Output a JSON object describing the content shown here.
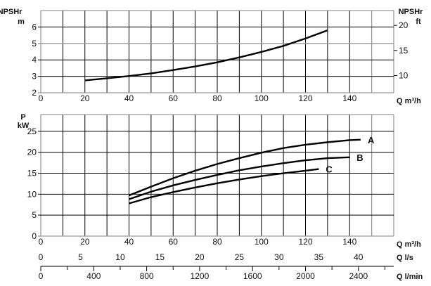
{
  "chart_data": [
    {
      "type": "line",
      "ylabel_left": [
        "NPSHr",
        "m"
      ],
      "ylabel_right": [
        "NPSHr",
        "ft"
      ],
      "xlabel": "Q m³/h",
      "xlim": [
        0,
        160
      ],
      "ylim": [
        2,
        7
      ],
      "xticks": [
        0,
        20,
        40,
        60,
        80,
        100,
        120,
        140
      ],
      "yticks": [
        2,
        3,
        4,
        5,
        6
      ],
      "yticks_right_ft": [
        10,
        15,
        20
      ],
      "grid": true,
      "series": [
        {
          "x": [
            20,
            30,
            40,
            50,
            60,
            70,
            80,
            90,
            100,
            110,
            120,
            130
          ],
          "y": [
            2.75,
            2.88,
            3.02,
            3.18,
            3.38,
            3.6,
            3.85,
            4.15,
            4.48,
            4.85,
            5.3,
            5.8
          ]
        }
      ]
    },
    {
      "type": "line",
      "ylabel": [
        "P",
        "kW"
      ],
      "xlabel": "Q m³/h",
      "xlim": [
        0,
        160
      ],
      "ylim": [
        0,
        29
      ],
      "xticks": [
        0,
        20,
        40,
        60,
        80,
        100,
        120,
        140
      ],
      "yticks": [
        0,
        5,
        10,
        15,
        20,
        25
      ],
      "grid": true,
      "secondary_x_axes": [
        {
          "label": "Q l/s",
          "ticks": [
            0,
            5,
            10,
            15,
            20,
            25,
            30,
            35,
            40
          ]
        },
        {
          "label": "Q l/min",
          "ticks": [
            0,
            400,
            800,
            1200,
            1600,
            2000,
            2400
          ]
        }
      ],
      "series": [
        {
          "name": "A",
          "x": [
            40,
            50,
            60,
            70,
            80,
            90,
            100,
            110,
            120,
            130,
            140,
            145
          ],
          "y": [
            9.7,
            11.8,
            13.8,
            15.6,
            17.2,
            18.6,
            19.9,
            21,
            21.8,
            22.4,
            22.9,
            23
          ]
        },
        {
          "name": "B",
          "x": [
            40,
            50,
            60,
            70,
            80,
            90,
            100,
            110,
            120,
            130,
            140
          ],
          "y": [
            8.8,
            10.6,
            12.1,
            13.4,
            14.6,
            15.7,
            16.6,
            17.4,
            18.1,
            18.6,
            18.8
          ]
        },
        {
          "name": "C",
          "x": [
            40,
            50,
            60,
            70,
            80,
            90,
            100,
            110,
            120,
            126
          ],
          "y": [
            7.8,
            9.3,
            10.5,
            11.6,
            12.6,
            13.5,
            14.3,
            15,
            15.6,
            16
          ]
        }
      ]
    }
  ]
}
